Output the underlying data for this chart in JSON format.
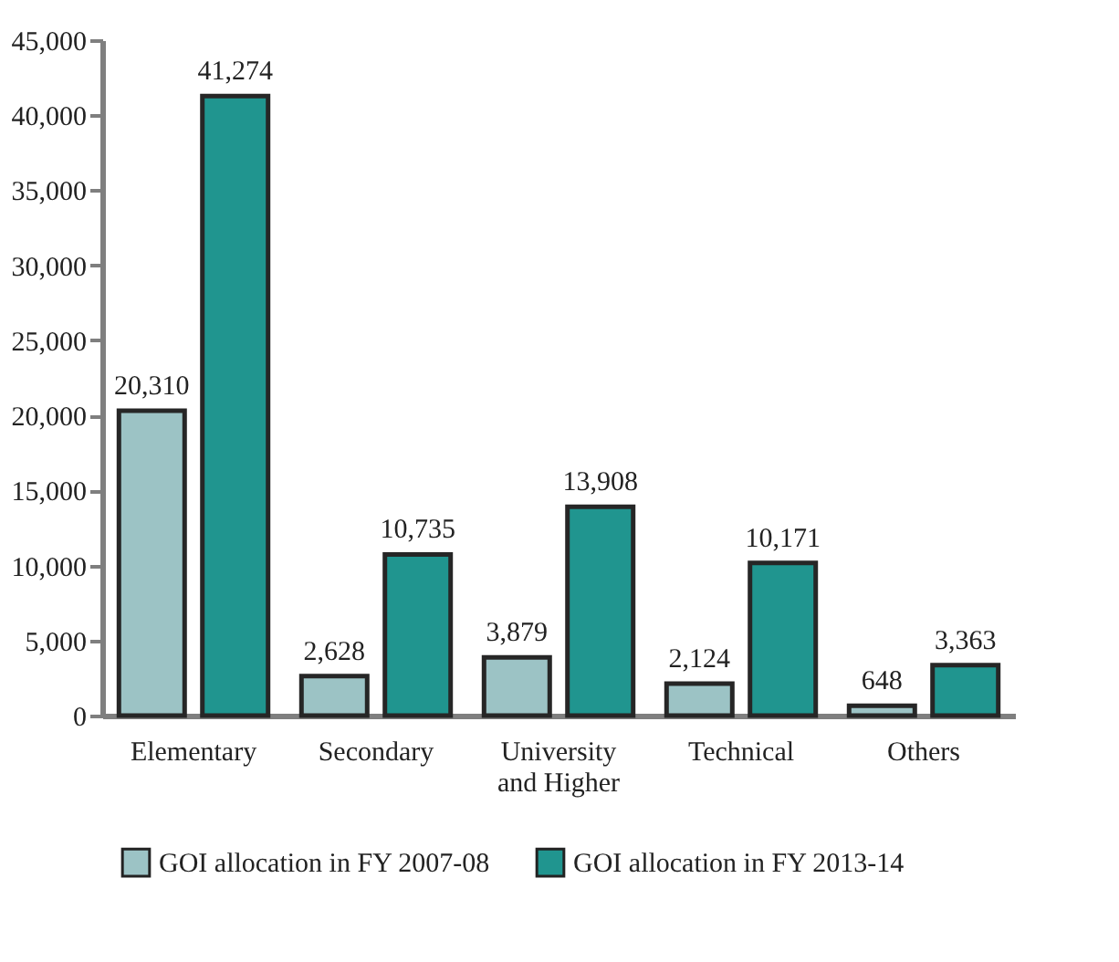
{
  "chart_data": {
    "type": "bar",
    "categories": [
      "Elementary",
      "Secondary",
      "University and Higher",
      "Technical",
      "Others"
    ],
    "series": [
      {
        "name": "GOI allocation in FY 2007-08",
        "color": "#9cc3c5",
        "values": [
          20310,
          2628,
          3879,
          2124,
          648
        ],
        "value_labels": [
          "20,310",
          "2,628",
          "3,879",
          "2,124",
          "648"
        ]
      },
      {
        "name": "GOI allocation in FY 2013-14",
        "color": "#20958f",
        "values": [
          41274,
          10735,
          13908,
          10171,
          3363
        ],
        "value_labels": [
          "41,274",
          "10,735",
          "13,908",
          "10,171",
          "3,363"
        ]
      }
    ],
    "ylim": [
      0,
      45000
    ],
    "yticks": [
      0,
      {
        "value": 5000,
        "label": "5,000"
      },
      {
        "value": 10000,
        "label": "10,000"
      },
      {
        "value": 15000,
        "label": "15,000"
      },
      {
        "value": 20000,
        "label": "20,000"
      },
      {
        "value": 25000,
        "label": "25,000"
      },
      {
        "value": 30000,
        "label": "30,000"
      },
      {
        "value": 35000,
        "label": "35,000"
      },
      {
        "value": 40000,
        "label": "40,000"
      },
      {
        "value": 45000,
        "label": "45,000"
      }
    ],
    "grid": false,
    "legend": "bottom"
  }
}
